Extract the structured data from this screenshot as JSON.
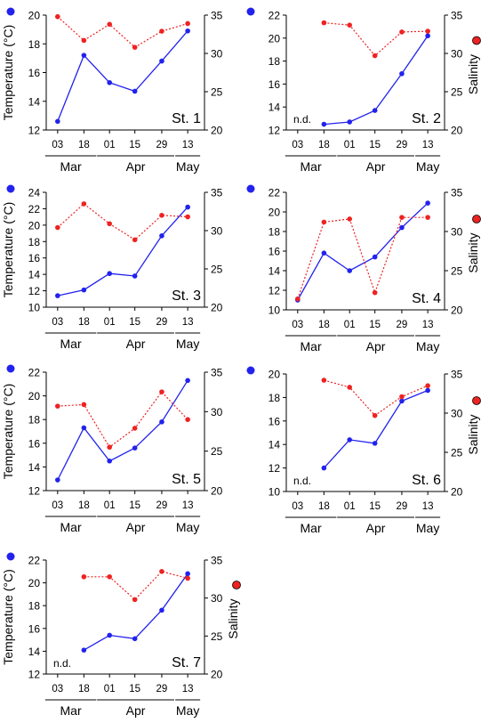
{
  "figure": {
    "temp_color": "#2222ee",
    "sal_color": "#ee2222",
    "nd_text": "n.d.",
    "temp_ylabel": "Temperature (°C)",
    "sal_ylabel": "Salinity",
    "x_categories": [
      "03",
      "18",
      "01",
      "15",
      "29",
      "13"
    ],
    "month_labels": [
      "Mar",
      "Apr",
      "May"
    ]
  },
  "chart_data": [
    {
      "type": "line",
      "station": "St. 1",
      "categories": [
        "03",
        "18",
        "01",
        "15",
        "29",
        "13"
      ],
      "groups": [
        "Mar",
        "Apr",
        "May"
      ],
      "temp_ylim": [
        12,
        20
      ],
      "temp_ticks": [
        12,
        14,
        16,
        18,
        20
      ],
      "sal_ylim": [
        20,
        35
      ],
      "sal_ticks": [
        20,
        25,
        30,
        35
      ],
      "series": [
        {
          "kind": "temperature",
          "values": [
            12.6,
            17.2,
            15.3,
            14.7,
            16.8,
            18.9
          ]
        },
        {
          "kind": "salinity",
          "values": [
            34.8,
            31.7,
            33.8,
            30.8,
            32.9,
            33.9
          ]
        }
      ],
      "show_nd": false,
      "show_temp_ylabel": true,
      "show_sal_ylabel": false
    },
    {
      "type": "line",
      "station": "St. 2",
      "categories": [
        "03",
        "18",
        "01",
        "15",
        "29",
        "13"
      ],
      "groups": [
        "Mar",
        "Apr",
        "May"
      ],
      "temp_ylim": [
        12,
        22
      ],
      "temp_ticks": [
        12,
        14,
        16,
        18,
        20,
        22
      ],
      "sal_ylim": [
        20,
        35
      ],
      "sal_ticks": [
        20,
        25,
        30,
        35
      ],
      "series": [
        {
          "kind": "temperature",
          "values": [
            null,
            12.5,
            12.7,
            13.7,
            16.9,
            20.2
          ]
        },
        {
          "kind": "salinity",
          "values": [
            null,
            34.0,
            33.7,
            29.7,
            32.8,
            32.9
          ]
        }
      ],
      "show_nd": true,
      "show_temp_ylabel": false,
      "show_sal_ylabel": true
    },
    {
      "type": "line",
      "station": "St. 3",
      "categories": [
        "03",
        "18",
        "01",
        "15",
        "29",
        "13"
      ],
      "groups": [
        "Mar",
        "Apr",
        "May"
      ],
      "temp_ylim": [
        10,
        24
      ],
      "temp_ticks": [
        10,
        12,
        14,
        16,
        18,
        20,
        22,
        24
      ],
      "sal_ylim": [
        20,
        35
      ],
      "sal_ticks": [
        20,
        25,
        30,
        35
      ],
      "series": [
        {
          "kind": "temperature",
          "values": [
            11.4,
            12.1,
            14.1,
            13.8,
            18.7,
            22.2
          ]
        },
        {
          "kind": "salinity",
          "values": [
            30.4,
            33.5,
            30.9,
            28.8,
            32.0,
            31.8
          ]
        }
      ],
      "show_nd": false,
      "show_temp_ylabel": true,
      "show_sal_ylabel": false
    },
    {
      "type": "line",
      "station": "St. 4",
      "categories": [
        "03",
        "18",
        "01",
        "15",
        "29",
        "13"
      ],
      "groups": [
        "Mar",
        "Apr",
        "May"
      ],
      "temp_ylim": [
        10,
        22
      ],
      "temp_ticks": [
        10,
        12,
        14,
        16,
        18,
        20,
        22
      ],
      "sal_ylim": [
        20,
        35
      ],
      "sal_ticks": [
        20,
        25,
        30,
        35
      ],
      "series": [
        {
          "kind": "temperature",
          "values": [
            11.0,
            15.8,
            14.0,
            15.4,
            18.4,
            20.9
          ]
        },
        {
          "kind": "salinity",
          "values": [
            21.4,
            31.2,
            31.6,
            22.2,
            31.8,
            31.8
          ]
        }
      ],
      "show_nd": false,
      "show_temp_ylabel": false,
      "show_sal_ylabel": true
    },
    {
      "type": "line",
      "station": "St. 5",
      "categories": [
        "03",
        "18",
        "01",
        "15",
        "29",
        "13"
      ],
      "groups": [
        "Mar",
        "Apr",
        "May"
      ],
      "temp_ylim": [
        12,
        22
      ],
      "temp_ticks": [
        12,
        14,
        16,
        18,
        20,
        22
      ],
      "sal_ylim": [
        20,
        35
      ],
      "sal_ticks": [
        20,
        25,
        30,
        35
      ],
      "series": [
        {
          "kind": "temperature",
          "values": [
            12.9,
            17.3,
            14.5,
            15.6,
            17.8,
            21.3
          ]
        },
        {
          "kind": "salinity",
          "values": [
            30.7,
            30.9,
            25.5,
            27.9,
            32.5,
            29.0
          ]
        }
      ],
      "show_nd": false,
      "show_temp_ylabel": true,
      "show_sal_ylabel": false
    },
    {
      "type": "line",
      "station": "St. 6",
      "categories": [
        "03",
        "18",
        "01",
        "15",
        "29",
        "13"
      ],
      "groups": [
        "Mar",
        "Apr",
        "May"
      ],
      "temp_ylim": [
        10,
        20
      ],
      "temp_ticks": [
        10,
        12,
        14,
        16,
        18,
        20
      ],
      "sal_ylim": [
        20,
        35
      ],
      "sal_ticks": [
        20,
        25,
        30,
        35
      ],
      "series": [
        {
          "kind": "temperature",
          "values": [
            null,
            12.0,
            14.4,
            14.1,
            17.7,
            18.6
          ]
        },
        {
          "kind": "salinity",
          "values": [
            null,
            34.2,
            33.3,
            29.7,
            32.1,
            33.5
          ]
        }
      ],
      "show_nd": true,
      "show_temp_ylabel": false,
      "show_sal_ylabel": true
    },
    {
      "type": "line",
      "station": "St. 7",
      "categories": [
        "03",
        "18",
        "01",
        "15",
        "29",
        "13"
      ],
      "groups": [
        "Mar",
        "Apr",
        "May"
      ],
      "temp_ylim": [
        12,
        22
      ],
      "temp_ticks": [
        12,
        14,
        16,
        18,
        20,
        22
      ],
      "sal_ylim": [
        20,
        35
      ],
      "sal_ticks": [
        20,
        25,
        30,
        35
      ],
      "series": [
        {
          "kind": "temperature",
          "values": [
            null,
            14.1,
            15.4,
            15.1,
            17.6,
            20.8
          ]
        },
        {
          "kind": "salinity",
          "values": [
            null,
            32.8,
            32.8,
            29.8,
            33.5,
            32.6
          ]
        }
      ],
      "show_nd": true,
      "show_temp_ylabel": true,
      "show_sal_ylabel": true
    }
  ]
}
